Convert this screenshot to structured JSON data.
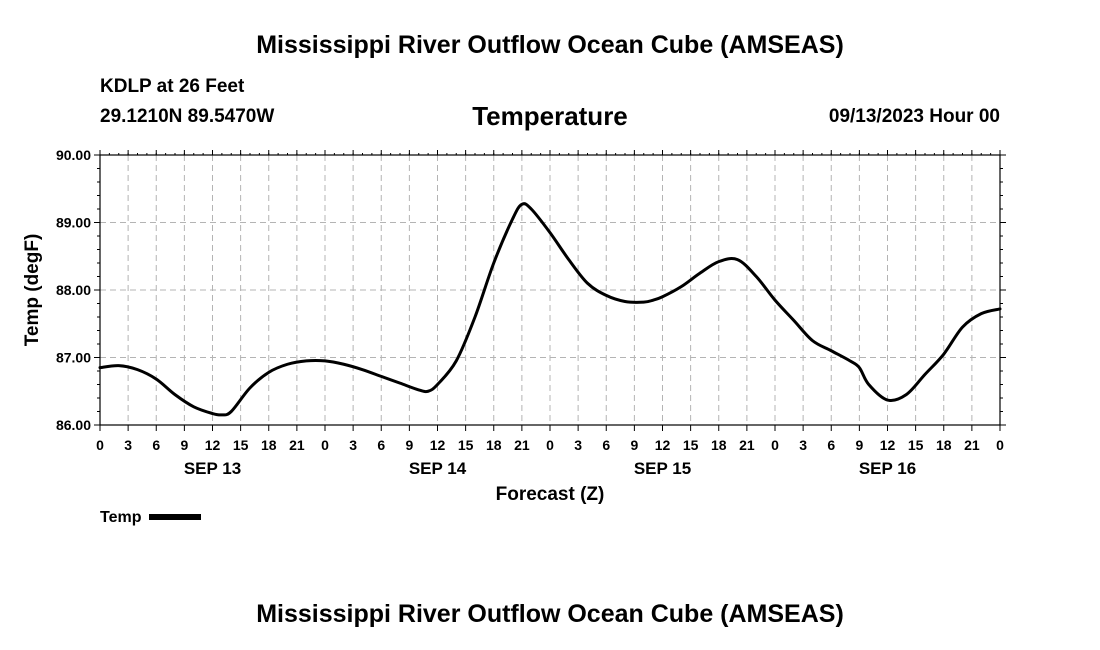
{
  "header": {
    "title": "Mississippi River Outflow Ocean Cube (AMSEAS)",
    "station": "KDLP at 26 Feet",
    "coords": "29.1210N  89.5470W",
    "chart_title": "Temperature",
    "datetime": "09/13/2023 Hour 00"
  },
  "footer": {
    "title": "Mississippi River Outflow Ocean Cube (AMSEAS)"
  },
  "legend": {
    "label": "Temp"
  },
  "colors": {
    "line": "#000000",
    "grid": "#b4b4b4",
    "background": "#ffffff"
  },
  "chart_data": {
    "type": "line",
    "title": "Temperature",
    "xlabel": "Forecast (Z)",
    "ylabel": "Temp (degF)",
    "ylim": [
      86,
      90
    ],
    "yticks": [
      "86.00",
      "87.00",
      "88.00",
      "89.00",
      "90.00"
    ],
    "xlim_hours": [
      0,
      96
    ],
    "xtick_step_hours": 3,
    "xtick_labels": [
      "0",
      "3",
      "6",
      "9",
      "12",
      "15",
      "18",
      "21",
      "0",
      "3",
      "6",
      "9",
      "12",
      "15",
      "18",
      "21",
      "0",
      "3",
      "6",
      "9",
      "12",
      "15",
      "18",
      "21",
      "0",
      "3",
      "6",
      "9",
      "12",
      "15",
      "18",
      "21",
      "0"
    ],
    "day_labels": [
      {
        "label": "SEP 13",
        "hour": 12
      },
      {
        "label": "SEP 14",
        "hour": 36
      },
      {
        "label": "SEP 15",
        "hour": 60
      },
      {
        "label": "SEP 16",
        "hour": 84
      }
    ],
    "series": [
      {
        "name": "Temp",
        "x": [
          0,
          2,
          4,
          6,
          8,
          10,
          12,
          13,
          14,
          16,
          18,
          20,
          22,
          24,
          26,
          28,
          30,
          32,
          34,
          35,
          36,
          38,
          40,
          42,
          44,
          45,
          46,
          48,
          50,
          52,
          54,
          56,
          58,
          59,
          60,
          62,
          64,
          66,
          68,
          70,
          72,
          74,
          76,
          78,
          80,
          81,
          82,
          84,
          86,
          88,
          90,
          92,
          94,
          96
        ],
        "values": [
          86.85,
          86.88,
          86.82,
          86.68,
          86.45,
          86.27,
          86.17,
          86.15,
          86.2,
          86.55,
          86.78,
          86.9,
          86.95,
          86.95,
          86.9,
          86.82,
          86.72,
          86.62,
          86.52,
          86.5,
          86.6,
          86.95,
          87.6,
          88.4,
          89.05,
          89.27,
          89.2,
          88.85,
          88.45,
          88.1,
          87.92,
          87.83,
          87.82,
          87.85,
          87.9,
          88.05,
          88.25,
          88.42,
          88.45,
          88.2,
          87.85,
          87.55,
          87.25,
          87.1,
          86.95,
          86.85,
          86.6,
          86.37,
          86.45,
          86.75,
          87.05,
          87.45,
          87.65,
          87.72
        ]
      }
    ],
    "grid": true,
    "legend_position": "bottom-left"
  }
}
